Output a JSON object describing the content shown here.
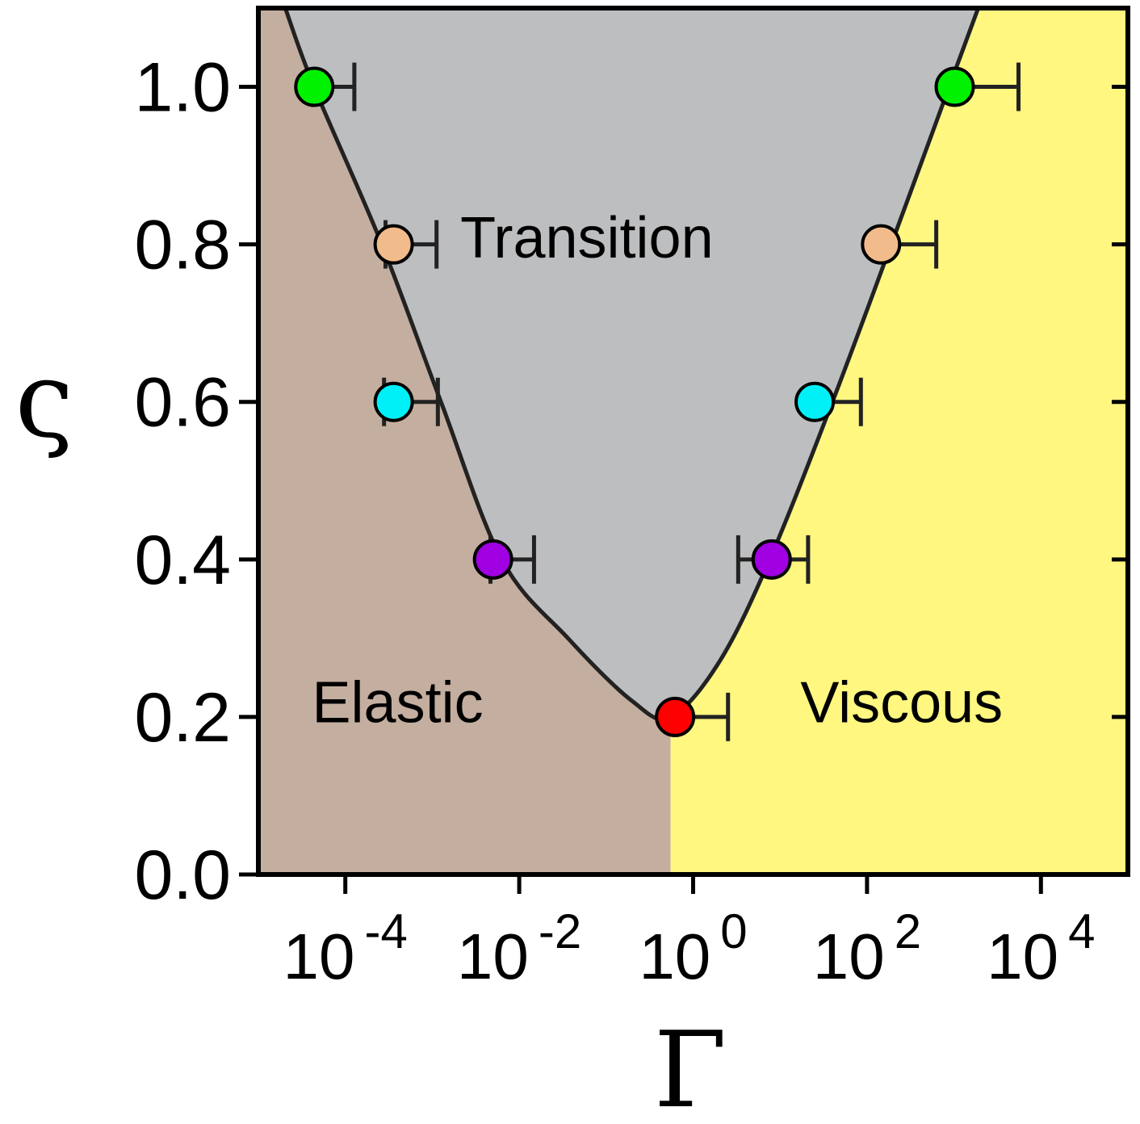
{
  "chart_data": {
    "type": "scatter",
    "xscale": "log",
    "xlabel": "Γ",
    "ylabel": "ς",
    "xlim": [
      1e-05,
      100000.0
    ],
    "ylim": [
      0.0,
      1.1
    ],
    "xticks": [
      {
        "value": 0.0001,
        "base": "10",
        "exp": "-4"
      },
      {
        "value": 0.01,
        "base": "10",
        "exp": "-2"
      },
      {
        "value": 1,
        "base": "10",
        "exp": "0"
      },
      {
        "value": 100.0,
        "base": "10",
        "exp": "2"
      },
      {
        "value": 10000.0,
        "base": "10",
        "exp": "4"
      }
    ],
    "yticks": [
      {
        "value": 0.0,
        "label": "0.0"
      },
      {
        "value": 0.2,
        "label": "0.2"
      },
      {
        "value": 0.4,
        "label": "0.4"
      },
      {
        "value": 0.6,
        "label": "0.6"
      },
      {
        "value": 0.8,
        "label": "0.8"
      },
      {
        "value": 1.0,
        "label": "1.0"
      }
    ],
    "grid": false,
    "regions": [
      {
        "label": "Elastic",
        "color": "#c4ae9f",
        "label_at": [
          0.0004,
          0.22
        ]
      },
      {
        "label": "Transition",
        "color": "#bdbec0",
        "label_at": [
          0.06,
          0.81
        ]
      },
      {
        "label": "Viscous",
        "color": "#fff780",
        "label_at": [
          250,
          0.22
        ]
      }
    ],
    "boundary": {
      "color": "#222222",
      "points": [
        [
          2.04e-05,
          1.1
        ],
        [
          4.37e-05,
          1.0
        ],
        [
          0.000263,
          0.8
        ],
        [
          0.00126,
          0.6
        ],
        [
          0.0063,
          0.4
        ],
        [
          0.0363,
          0.3
        ],
        [
          0.2,
          0.22
        ],
        [
          0.55,
          0.2
        ],
        [
          2.0,
          0.27
        ],
        [
          7.6,
          0.4
        ],
        [
          40,
          0.6
        ],
        [
          190,
          0.8
        ],
        [
          880,
          1.0
        ],
        [
          1900,
          1.1
        ]
      ]
    },
    "points": [
      {
        "x": 4.4e-05,
        "y": 1.0,
        "xerr_low": 4.4e-05,
        "xerr_high": 8.3e-05,
        "color": "#00f200"
      },
      {
        "x": 0.00036,
        "y": 0.8,
        "xerr_low": 7e-05,
        "xerr_high": 0.00076,
        "color": "#f2bb8b"
      },
      {
        "x": 0.00036,
        "y": 0.6,
        "xerr_low": 8.1e-05,
        "xerr_high": 0.0008,
        "color": "#00f0f8"
      },
      {
        "x": 0.005,
        "y": 0.4,
        "xerr_low": 0.00033,
        "xerr_high": 0.0098,
        "color": "#a000e2"
      },
      {
        "x": 0.62,
        "y": 0.2,
        "xerr_low": 0.62,
        "xerr_high": 1.9,
        "color": "#ff0000"
      },
      {
        "x": 8.0,
        "y": 0.4,
        "xerr_low": 4.7,
        "xerr_high": 13,
        "color": "#a000e2"
      },
      {
        "x": 25,
        "y": 0.6,
        "xerr_low": 25,
        "xerr_high": 60,
        "color": "#00f0f8"
      },
      {
        "x": 145,
        "y": 0.8,
        "xerr_low": 145,
        "xerr_high": 480,
        "color": "#f2bb8b"
      },
      {
        "x": 1020,
        "y": 1.0,
        "xerr_low": 1020,
        "xerr_high": 4500,
        "color": "#00f200"
      }
    ]
  }
}
